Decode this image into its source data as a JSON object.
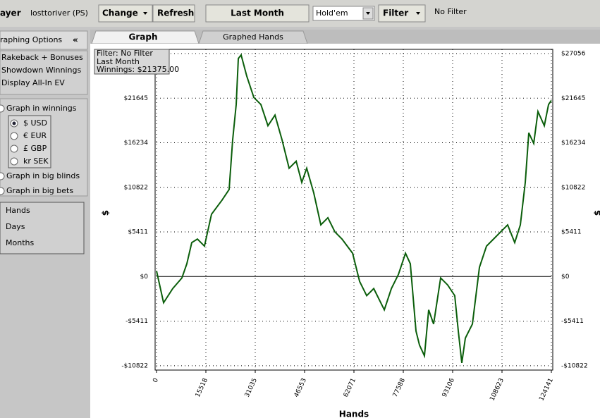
{
  "toolbar": {
    "player_label": "ayer",
    "player_name": "losttoriver (PS)",
    "change": "Change",
    "refresh": "Refresh",
    "period": "Last Month",
    "game": "Hold'em",
    "filter": "Filter",
    "filter_state": "No Filter"
  },
  "sidebar": {
    "title": "raphing Options",
    "collapse": "«",
    "checkboxes": [
      "Rakeback + Bonuses",
      "Showdown Winnings",
      "Display All-In EV"
    ],
    "graph_in_winnings": "Graph in winnings",
    "currencies": [
      "$ USD",
      "€ EUR",
      "£ GBP",
      "kr SEK"
    ],
    "graph_in_big_blinds": "Graph in big blinds",
    "graph_in_big_bets": "Graph in big bets",
    "x_modes": [
      "Hands",
      "Days",
      "Months"
    ]
  },
  "tabs": [
    "Graph",
    "Graphed Hands"
  ],
  "info": [
    "Filter: No Filter",
    "Last Month",
    "Winnings: $21375.00"
  ],
  "chart_data": {
    "type": "line",
    "x_label": "Hands",
    "y_label": "$",
    "x": [
      0,
      2217,
      5100,
      7980,
      9530,
      11080,
      12860,
      15070,
      17290,
      20610,
      22830,
      23940,
      25050,
      25720,
      26600,
      28380,
      30600,
      32820,
      35030,
      37250,
      39470,
      41690,
      43910,
      45670,
      47220,
      49440,
      51660,
      53880,
      56100,
      58320,
      61650,
      63860,
      66080,
      68300,
      71620,
      73840,
      76060,
      78280,
      79800,
      81580,
      82690,
      84240,
      85570,
      87120,
      89330,
      91550,
      93770,
      94880,
      95990,
      97100,
      99320,
      101530,
      103750,
      105970,
      108180,
      110400,
      112620,
      114390,
      115940,
      117050,
      118600,
      119930,
      121930,
      123260,
      124141
    ],
    "series": [
      {
        "name": "Winnings",
        "color": "#0b5e0b",
        "values": [
          690,
          -3180,
          -1460,
          -170,
          1550,
          4120,
          4550,
          3690,
          7560,
          9280,
          10570,
          16580,
          20870,
          26460,
          26890,
          24310,
          21730,
          20870,
          18300,
          19590,
          16580,
          13140,
          14000,
          11420,
          13140,
          10140,
          6270,
          7130,
          5410,
          4550,
          2830,
          -600,
          -2320,
          -1460,
          -4040,
          -1460,
          260,
          2830,
          1550,
          -6610,
          -8330,
          -9620,
          -4040,
          -5760,
          -170,
          -1030,
          -2320,
          -6610,
          -10480,
          -7470,
          -5760,
          1120,
          3690,
          4550,
          5410,
          6270,
          4120,
          6270,
          11420,
          17440,
          16150,
          20020,
          18300,
          20870,
          21375
        ]
      }
    ],
    "xlim": [
      0,
      124141
    ],
    "ylim": [
      -11350,
      27570
    ],
    "xticks": [
      0,
      15518,
      31035,
      46553,
      62071,
      77588,
      93106,
      108623,
      124141
    ],
    "yticks": [
      {
        "value": -10822,
        "label": "-$10822"
      },
      {
        "value": -5411,
        "label": "-$5411"
      },
      {
        "value": 0,
        "label": "$0"
      },
      {
        "value": 5411,
        "label": "$5411"
      },
      {
        "value": 10822,
        "label": "$10822"
      },
      {
        "value": 16234,
        "label": "$16234"
      },
      {
        "value": 21645,
        "label": "$21645"
      },
      {
        "value": 27056,
        "label": "$27056"
      }
    ],
    "grid": true
  }
}
